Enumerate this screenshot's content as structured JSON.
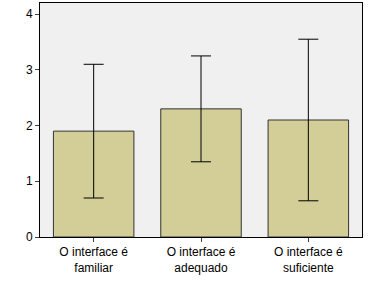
{
  "chart_data": {
    "type": "bar",
    "categories": [
      "O interface é familiar",
      "O interface é adequado",
      "O interface é suficiente"
    ],
    "values": [
      1.9,
      2.3,
      2.1
    ],
    "errors": [
      1.2,
      0.95,
      1.45
    ],
    "color": "#d3ce97",
    "ylim": [
      0,
      4.2
    ],
    "yticks": [
      0,
      1,
      2,
      3,
      4
    ],
    "grid": false
  }
}
